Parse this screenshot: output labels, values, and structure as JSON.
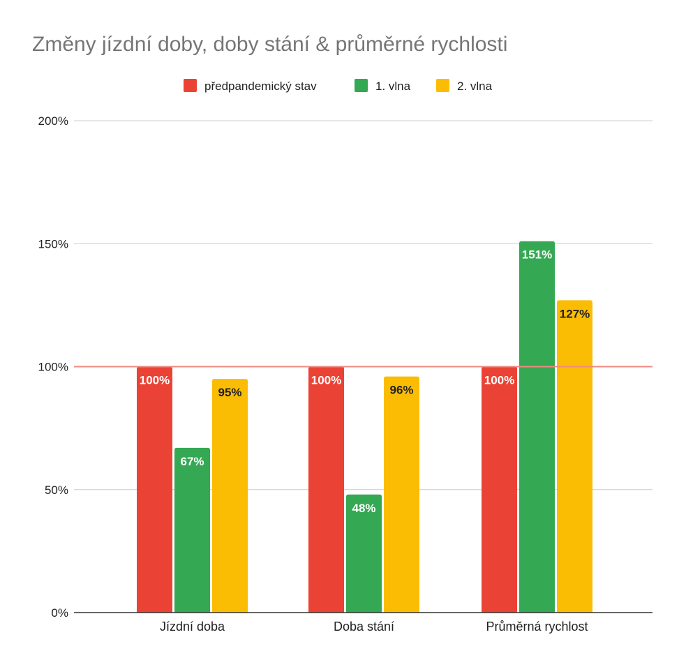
{
  "chart_data": {
    "type": "bar",
    "title": "Změny jízdní doby, doby stání & průměrné rychlosti",
    "categories": [
      "Jízdní doba",
      "Doba stání",
      "Průměrná rychlost"
    ],
    "series": [
      {
        "name": "předpandemický stav",
        "color": "#ea4335",
        "label_color": "#ffffff",
        "values": [
          100,
          100,
          100
        ],
        "labels": [
          "100%",
          "100%",
          "100%"
        ]
      },
      {
        "name": "1. vlna",
        "color": "#34a853",
        "label_color": "#ffffff",
        "values": [
          67,
          48,
          151
        ],
        "labels": [
          "67%",
          "48%",
          "151%"
        ]
      },
      {
        "name": "2. vlna",
        "color": "#fbbc04",
        "label_color": "#222222",
        "values": [
          95,
          96,
          127
        ],
        "labels": [
          "95%",
          "96%",
          "127%"
        ]
      }
    ],
    "y_ticks": [
      0,
      50,
      100,
      150,
      200
    ],
    "y_tick_labels": [
      "0%",
      "50%",
      "100%",
      "150%",
      "200%"
    ],
    "ylim": [
      0,
      200
    ],
    "reference_line": {
      "value": 100,
      "color": "#ef8a80"
    },
    "grid": true,
    "legend_position": "top-center",
    "gridline_color": "#cccccc",
    "axis_color": "#333333"
  }
}
